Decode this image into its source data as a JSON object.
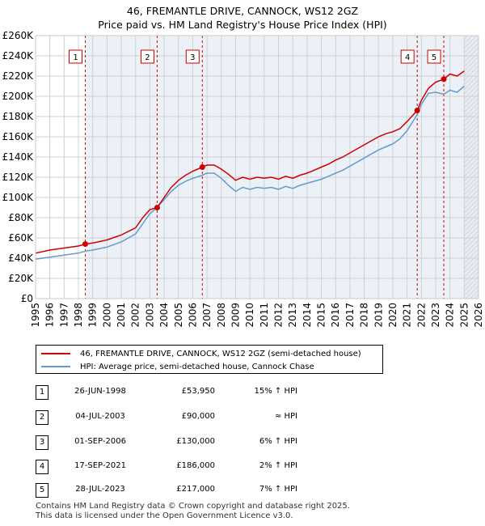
{
  "header": {
    "title": "46, FREMANTLE DRIVE, CANNOCK, WS12 2GZ",
    "subtitle": "Price paid vs. HM Land Registry's House Price Index (HPI)"
  },
  "colors": {
    "property_line": "#cc0000",
    "hpi_line": "#6699cc",
    "shade": "#dce6f2",
    "marker_line": "#cc0000"
  },
  "legend": {
    "property_label": "46, FREMANTLE DRIVE, CANNOCK, WS12 2GZ (semi-detached house)",
    "hpi_label": "HPI: Average price, semi-detached house, Cannock Chase"
  },
  "transactions": [
    {
      "num": "1",
      "date": "26-JUN-1998",
      "price": "£53,950",
      "hpi": "15% ↑ HPI"
    },
    {
      "num": "2",
      "date": "04-JUL-2003",
      "price": "£90,000",
      "hpi": "≈ HPI"
    },
    {
      "num": "3",
      "date": "01-SEP-2006",
      "price": "£130,000",
      "hpi": "6% ↑ HPI"
    },
    {
      "num": "4",
      "date": "17-SEP-2021",
      "price": "£186,000",
      "hpi": "2% ↑ HPI"
    },
    {
      "num": "5",
      "date": "28-JUL-2023",
      "price": "£217,000",
      "hpi": "7% ↑ HPI"
    }
  ],
  "footer": {
    "line1": "Contains HM Land Registry data © Crown copyright and database right 2025.",
    "line2": "This data is licensed under the Open Government Licence v3.0."
  },
  "chart_data": {
    "type": "line",
    "title": "46, FREMANTLE DRIVE, CANNOCK, WS12 2GZ",
    "subtitle": "Price paid vs. HM Land Registry's House Price Index (HPI)",
    "xlim": [
      1995,
      2026
    ],
    "ylim": [
      0,
      260000
    ],
    "x_ticks": [
      1995,
      1996,
      1997,
      1998,
      1999,
      2000,
      2001,
      2002,
      2003,
      2004,
      2005,
      2006,
      2007,
      2008,
      2009,
      2010,
      2011,
      2012,
      2013,
      2014,
      2015,
      2016,
      2017,
      2018,
      2019,
      2020,
      2021,
      2022,
      2023,
      2024,
      2025,
      2026
    ],
    "y_ticks": [
      0,
      20000,
      40000,
      60000,
      80000,
      100000,
      120000,
      140000,
      160000,
      180000,
      200000,
      220000,
      240000,
      260000
    ],
    "y_tick_labels": [
      "£0",
      "£20K",
      "£40K",
      "£60K",
      "£80K",
      "£100K",
      "£120K",
      "£140K",
      "£160K",
      "£180K",
      "£200K",
      "£220K",
      "£240K",
      "£260K"
    ],
    "grid": true,
    "forecast_start": 2025.0,
    "series": [
      {
        "name": "46, FREMANTLE DRIVE, CANNOCK, WS12 2GZ (semi-detached house)",
        "x": [
          1995.0,
          1996.0,
          1997.0,
          1998.0,
          1998.48,
          1999.0,
          2000.0,
          2001.0,
          2002.0,
          2002.5,
          2003.0,
          2003.5,
          2004.0,
          2004.5,
          2005.0,
          2005.5,
          2006.0,
          2006.67,
          2007.0,
          2007.5,
          2008.0,
          2008.5,
          2009.0,
          2009.5,
          2010.0,
          2010.5,
          2011.0,
          2011.5,
          2012.0,
          2012.5,
          2013.0,
          2013.5,
          2014.0,
          2014.5,
          2015.0,
          2015.5,
          2016.0,
          2016.5,
          2017.0,
          2017.5,
          2018.0,
          2018.5,
          2019.0,
          2019.5,
          2020.0,
          2020.5,
          2021.0,
          2021.71,
          2022.0,
          2022.5,
          2023.0,
          2023.57,
          2024.0,
          2024.5,
          2025.0
        ],
        "values": [
          45000,
          48000,
          50000,
          52000,
          53950,
          55000,
          58000,
          63000,
          70000,
          80000,
          88000,
          90000,
          100000,
          110000,
          117000,
          122000,
          126000,
          130000,
          132000,
          132000,
          128000,
          123000,
          117000,
          120000,
          118000,
          120000,
          119000,
          120000,
          118000,
          121000,
          119000,
          122000,
          124000,
          127000,
          130000,
          133000,
          137000,
          140000,
          144000,
          148000,
          152000,
          156000,
          160000,
          163000,
          165000,
          168000,
          175000,
          186000,
          196000,
          208000,
          214000,
          217000,
          222000,
          220000,
          225000
        ]
      },
      {
        "name": "HPI: Average price, semi-detached house, Cannock Chase",
        "x": [
          1995.0,
          1996.0,
          1997.0,
          1998.0,
          1998.48,
          1999.0,
          2000.0,
          2001.0,
          2002.0,
          2002.5,
          2003.0,
          2003.5,
          2004.0,
          2004.5,
          2005.0,
          2005.5,
          2006.0,
          2006.67,
          2007.0,
          2007.5,
          2008.0,
          2008.5,
          2009.0,
          2009.5,
          2010.0,
          2010.5,
          2011.0,
          2011.5,
          2012.0,
          2012.5,
          2013.0,
          2013.5,
          2014.0,
          2014.5,
          2015.0,
          2015.5,
          2016.0,
          2016.5,
          2017.0,
          2017.5,
          2018.0,
          2018.5,
          2019.0,
          2019.5,
          2020.0,
          2020.5,
          2021.0,
          2021.71,
          2022.0,
          2022.5,
          2023.0,
          2023.57,
          2024.0,
          2024.5,
          2025.0
        ],
        "values": [
          39000,
          41000,
          43000,
          45000,
          47000,
          48000,
          51000,
          56000,
          64000,
          74000,
          84000,
          90000,
          98000,
          106000,
          112000,
          116000,
          119000,
          122000,
          124000,
          124000,
          119000,
          112000,
          106000,
          110000,
          108000,
          110000,
          109000,
          110000,
          108000,
          111000,
          109000,
          112000,
          114000,
          116000,
          118000,
          121000,
          124000,
          127000,
          131000,
          135000,
          139000,
          143000,
          147000,
          150000,
          153000,
          158000,
          166000,
          182000,
          192000,
          203000,
          204000,
          202000,
          206000,
          204000,
          210000
        ]
      }
    ],
    "markers": [
      {
        "label": "1",
        "x": 1998.48,
        "y": 53950
      },
      {
        "label": "2",
        "x": 2003.51,
        "y": 90000
      },
      {
        "label": "3",
        "x": 2006.67,
        "y": 130000
      },
      {
        "label": "4",
        "x": 2021.71,
        "y": 186000
      },
      {
        "label": "5",
        "x": 2023.57,
        "y": 217000
      }
    ]
  }
}
